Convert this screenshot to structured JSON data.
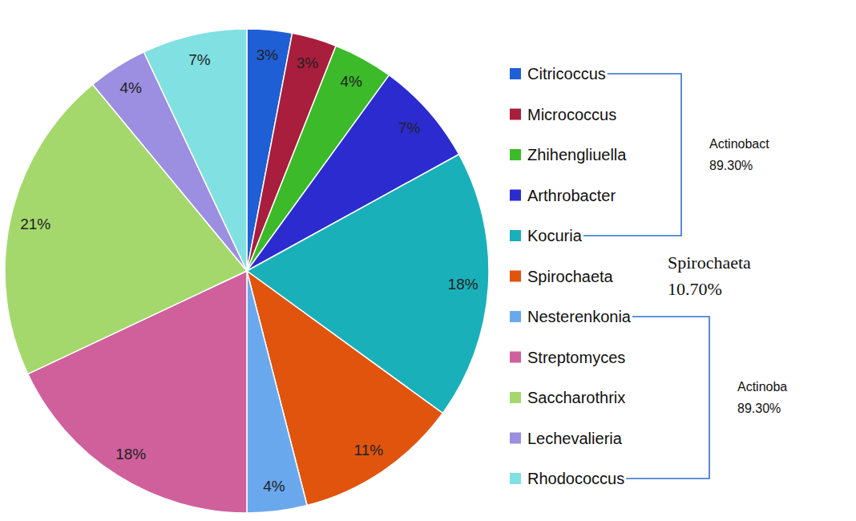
{
  "chart_data": {
    "type": "pie",
    "categories": [
      "Citricoccus",
      "Micrococcus",
      "Zhihengliuella",
      "Arthrobacter",
      "Kocuria",
      "Spirochaeta",
      "Nesterenkonia",
      "Streptomyces",
      "Saccharothrix",
      "Lechevalieria",
      "Rhodococcus"
    ],
    "values": [
      3,
      3,
      4,
      7,
      18,
      11,
      4,
      18,
      21,
      4,
      7
    ],
    "value_labels": [
      "3%",
      "3%",
      "4%",
      "7%",
      "18%",
      "11%",
      "4%",
      "18%",
      "21%",
      "4%",
      "7%"
    ],
    "colors": [
      "#1f5fd6",
      "#a81e3c",
      "#3cba2a",
      "#2b2bd0",
      "#1ab0ba",
      "#e0540e",
      "#6aa8ee",
      "#d0609c",
      "#a4d86c",
      "#9c8ee0",
      "#80e0e2"
    ],
    "data_labels": true,
    "legend": "right",
    "annotations": [
      {
        "text": "Actinobact",
        "label": "89.30%",
        "from": "Citricoccus",
        "to": "Kocuria"
      },
      {
        "text": "Spirochaeta",
        "label": "10.70%",
        "from": "Spirochaeta",
        "to": "Spirochaeta"
      },
      {
        "text": "Actinoba",
        "label": "89.30%",
        "from": "Nesterenkonia",
        "to": "Rhodococcus"
      }
    ]
  }
}
